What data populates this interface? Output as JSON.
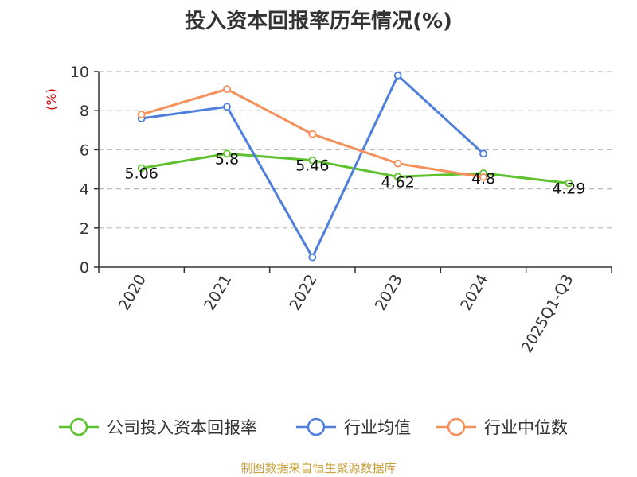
{
  "chart_data": {
    "type": "line",
    "title": "投入资本回报率历年情况(%)",
    "ylabel": "(%)",
    "xlabel": "",
    "categories": [
      "2020",
      "2021",
      "2022",
      "2023",
      "2024",
      "2025Q1-Q3"
    ],
    "ylim": [
      0,
      10
    ],
    "yticks": [
      0,
      2,
      4,
      6,
      8,
      10
    ],
    "grid": true,
    "legend_position": "bottom",
    "series": [
      {
        "name": "公司投入资本回报率",
        "color": "#5ec12e",
        "values": [
          5.06,
          5.8,
          5.46,
          4.62,
          4.8,
          4.29
        ],
        "labels_shown": true
      },
      {
        "name": "行业均值",
        "color": "#4f7fdc",
        "values": [
          7.6,
          8.2,
          0.5,
          9.8,
          5.8,
          null
        ],
        "labels_shown": false
      },
      {
        "name": "行业中位数",
        "color": "#f5905a",
        "values": [
          7.8,
          9.1,
          6.8,
          5.3,
          4.6,
          null
        ],
        "labels_shown": false
      }
    ]
  },
  "source": "制图数据来自恒生聚源数据库"
}
